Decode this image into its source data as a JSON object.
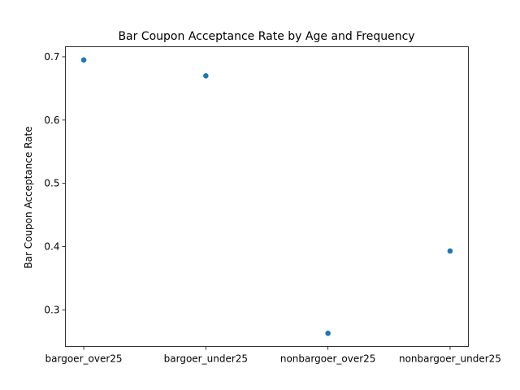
{
  "chart_data": {
    "type": "scatter",
    "title": "Bar Coupon Acceptance Rate by Age and Frequency",
    "xlabel": "",
    "ylabel": "Bar Coupon Acceptance Rate",
    "categories": [
      "bargoer_over25",
      "bargoer_under25",
      "nonbargoer_over25",
      "nonbargoer_under25"
    ],
    "values": [
      0.695,
      0.67,
      0.263,
      0.393
    ],
    "yticks": [
      0.3,
      0.4,
      0.5,
      0.6,
      0.7
    ],
    "ytick_labels": [
      "0.3",
      "0.4",
      "0.5",
      "0.6",
      "0.7"
    ],
    "ylim": [
      0.242,
      0.716
    ],
    "grid": false,
    "marker_color": "#1f77b4"
  }
}
